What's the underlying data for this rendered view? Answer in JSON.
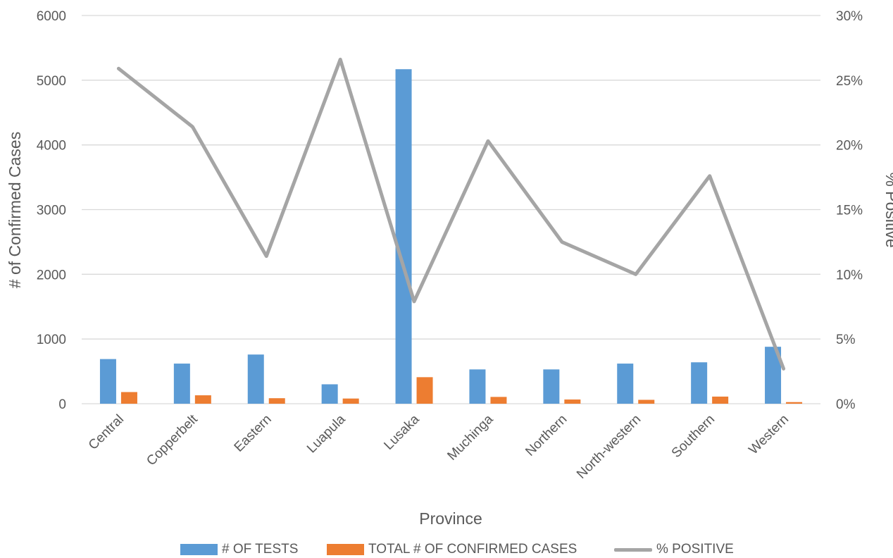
{
  "chart_data": {
    "type": "bar",
    "xlabel": "Province",
    "ylabel": "# of Confirmed Cases",
    "y2label": "% Positive",
    "ylim": [
      0,
      6000
    ],
    "y2lim": [
      0,
      0.3
    ],
    "yticks": [
      "0",
      "1000",
      "2000",
      "3000",
      "4000",
      "5000",
      "6000"
    ],
    "y2ticks": [
      "0%",
      "5%",
      "10%",
      "15%",
      "20%",
      "25%",
      "30%"
    ],
    "grid": true,
    "legend_position": "bottom",
    "categories": [
      "Central",
      "Copperbelt",
      "Eastern",
      "Luapula",
      "Lusaka",
      "Muchinga",
      "Northern",
      "North-western",
      "Southern",
      "Western"
    ],
    "series": [
      {
        "name": "# OF TESTS",
        "type": "bar",
        "axis": "left",
        "color": "#5B9BD5",
        "values": [
          690,
          620,
          760,
          300,
          5170,
          530,
          530,
          620,
          640,
          880
        ]
      },
      {
        "name": "TOTAL # OF CONFIRMED CASES",
        "type": "bar",
        "axis": "left",
        "color": "#ED7D31",
        "values": [
          180,
          130,
          85,
          80,
          410,
          105,
          65,
          60,
          110,
          25
        ]
      },
      {
        "name": "% POSITIVE",
        "type": "line",
        "axis": "right",
        "color": "#A5A5A5",
        "values": [
          0.259,
          0.214,
          0.114,
          0.266,
          0.079,
          0.203,
          0.125,
          0.1,
          0.176,
          0.027
        ]
      }
    ]
  }
}
